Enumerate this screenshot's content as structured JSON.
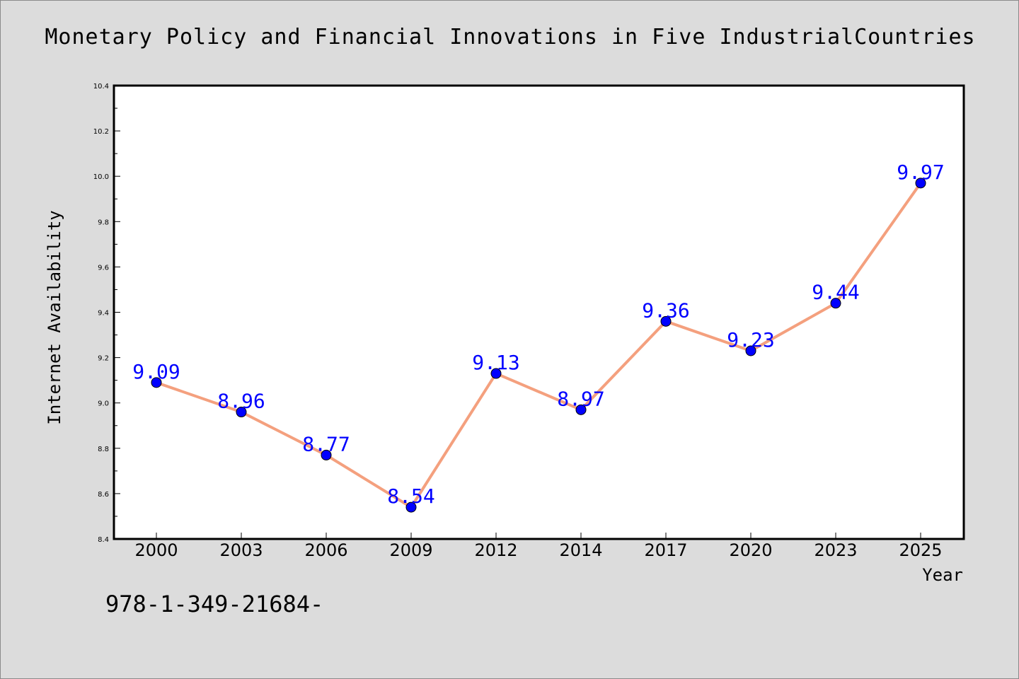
{
  "footnote": "978-1-349-21684-",
  "colors": {
    "background": "#dcdcdc",
    "plot_background": "#ffffff",
    "line": "#f4a07e",
    "marker": "#0000ff",
    "data_label": "#0000ff"
  },
  "chart_data": {
    "type": "line",
    "title": "Monetary Policy and Financial Innovations in Five IndustrialCountries",
    "xlabel": "Year",
    "ylabel": "Internet Availability",
    "categories": [
      "2000",
      "2003",
      "2006",
      "2009",
      "2012",
      "2014",
      "2017",
      "2020",
      "2023",
      "2025"
    ],
    "series": [
      {
        "values": [
          9.09,
          8.96,
          8.77,
          8.54,
          9.13,
          8.97,
          9.36,
          9.23,
          9.44,
          9.97
        ],
        "labels": [
          "9.09",
          "8.96",
          "8.77",
          "8.54",
          "9.13",
          "8.97",
          "9.36",
          "9.23",
          "9.44",
          "9.97"
        ]
      }
    ],
    "ylim": [
      8.4,
      10.4
    ],
    "yticks": [
      "8.4",
      "8.6",
      "8.8",
      "9.0",
      "9.2",
      "9.4",
      "9.6",
      "9.8",
      "10.0",
      "10.2",
      "10.4"
    ],
    "grid": false,
    "legend": "none"
  }
}
